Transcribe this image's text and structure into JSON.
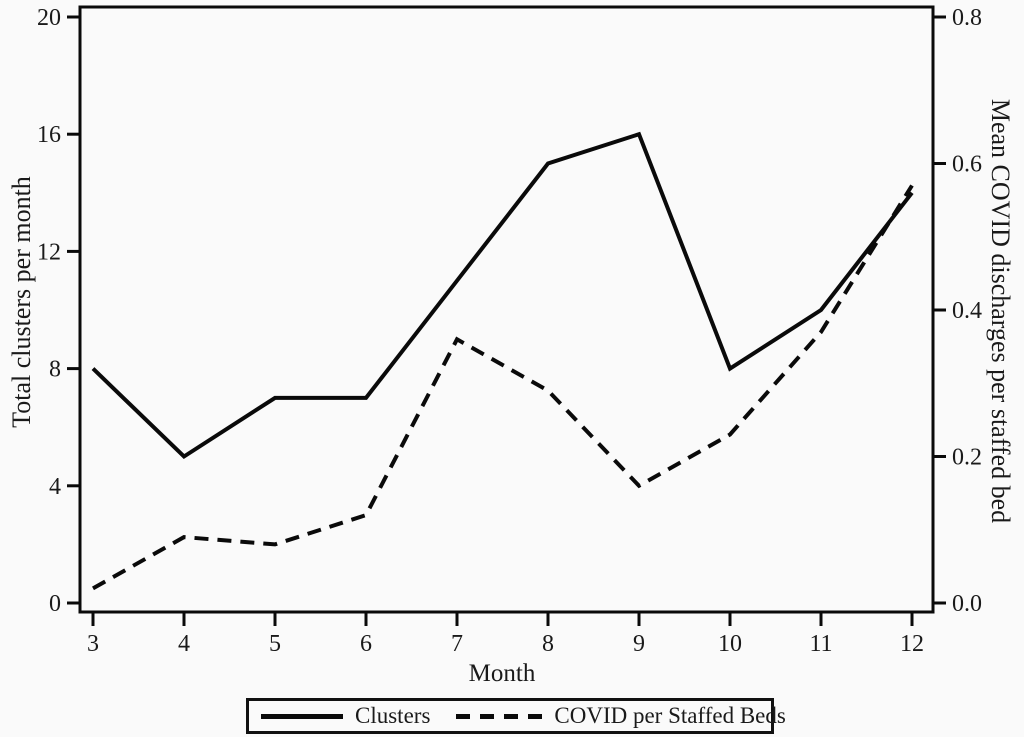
{
  "chart_data": {
    "type": "line",
    "x": [
      3,
      4,
      5,
      6,
      7,
      8,
      9,
      10,
      11,
      12
    ],
    "xlabel": "Month",
    "x_tick_labels": [
      "3",
      "4",
      "5",
      "6",
      "7",
      "8",
      "9",
      "10",
      "11",
      "12"
    ],
    "left_axis": {
      "label": "Total clusters per month",
      "min": 0,
      "max": 20,
      "ticks": [
        "0",
        "4",
        "8",
        "12",
        "16",
        "20"
      ]
    },
    "right_axis": {
      "label": "Mean COVID discharges per staffed bed",
      "min": 0,
      "max": 0.8,
      "ticks": [
        "0.0",
        "0.2",
        "0.4",
        "0.6",
        "0.8"
      ]
    },
    "series": [
      {
        "name": "Clusters",
        "axis": "left",
        "style": "solid",
        "values": [
          8,
          5,
          7,
          7,
          11,
          15,
          16,
          8,
          10,
          14
        ]
      },
      {
        "name": "COVID per Staffed Beds",
        "axis": "right",
        "style": "dashed",
        "values": [
          0.02,
          0.09,
          0.08,
          0.12,
          0.36,
          0.29,
          0.16,
          0.23,
          0.37,
          0.57
        ]
      }
    ],
    "legend_position": "bottom",
    "grid": false
  },
  "colors": {
    "line": "#0a0a0a",
    "text": "#1a1a1a",
    "background": "#fafafa"
  }
}
